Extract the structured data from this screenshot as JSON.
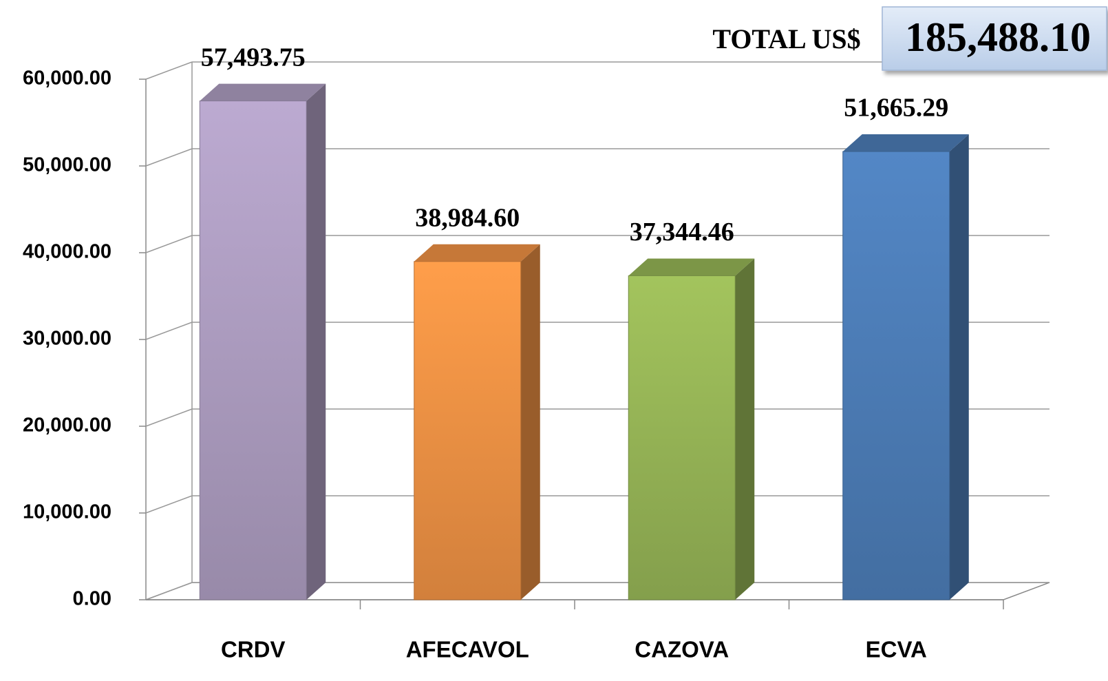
{
  "chart_data": {
    "type": "bar",
    "categories": [
      "CRDV",
      "AFECAVOL",
      "CAZOVA",
      "ECVA"
    ],
    "values": [
      57493.75,
      38984.6,
      37344.46,
      51665.29
    ],
    "value_labels": [
      "57,493.75",
      "38,984.60",
      "37,344.46",
      "51,665.29"
    ],
    "colors": [
      "#b3a2c7",
      "#f79646",
      "#9bbb59",
      "#4f81bd"
    ],
    "ylim": [
      0,
      60000
    ],
    "yticks": [
      {
        "value": 0,
        "label": "0.00"
      },
      {
        "value": 10000,
        "label": "10,000.00"
      },
      {
        "value": 20000,
        "label": "20,000.00"
      },
      {
        "value": 30000,
        "label": "30,000.00"
      },
      {
        "value": 40000,
        "label": "40,000.00"
      },
      {
        "value": 50000,
        "label": "50,000.00"
      },
      {
        "value": 60000,
        "label": "60,000.00"
      }
    ],
    "grid": true,
    "annotations": {
      "total_label": "TOTAL US$",
      "total_value": "185,488.10"
    }
  }
}
